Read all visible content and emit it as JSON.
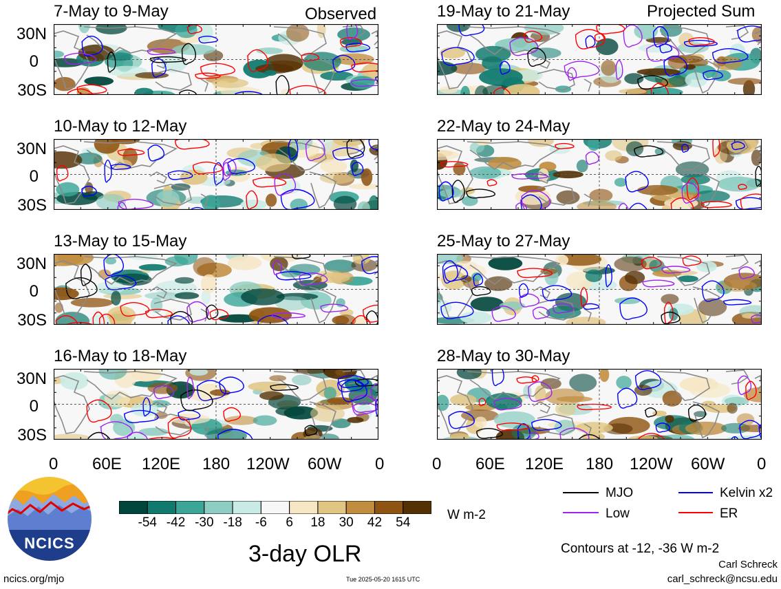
{
  "headers": {
    "observed": "Observed",
    "projected": "Projected Sum"
  },
  "panels": [
    {
      "title": "7-May to 9-May"
    },
    {
      "title": "10-May to 12-May"
    },
    {
      "title": "13-May to 15-May"
    },
    {
      "title": "16-May to 18-May"
    },
    {
      "title": "19-May to 21-May"
    },
    {
      "title": "22-May to 24-May"
    },
    {
      "title": "25-May to 27-May"
    },
    {
      "title": "28-May to 30-May"
    }
  ],
  "lat_labels": [
    "30N",
    "0",
    "30S"
  ],
  "lon_labels": [
    "0",
    "60E",
    "120E",
    "180",
    "120W",
    "60W",
    "0"
  ],
  "colorbar": {
    "colors": [
      "#01463c",
      "#117a6e",
      "#3ba597",
      "#8ecdc2",
      "#c9ebe5",
      "#f7f7f7",
      "#f6e6c3",
      "#e1c683",
      "#c18d3f",
      "#8f5412",
      "#543005"
    ],
    "ticks": [
      "-54",
      "-42",
      "-30",
      "-18",
      "-6",
      "6",
      "18",
      "30",
      "42",
      "54"
    ],
    "units": "W m-2"
  },
  "legend": [
    {
      "label": "MJO",
      "color": "#000000"
    },
    {
      "label": "Kelvin x2",
      "color": "#0000ff"
    },
    {
      "label": "Low",
      "color": "#a020f0"
    },
    {
      "label": "ER",
      "color": "#ff0000"
    }
  ],
  "main_title": "3-day OLR",
  "contour_note": "Contours at -12, -36 W m-2",
  "author": "Carl Schreck",
  "email": "carl_schreck@ncsu.edu",
  "url": "ncics.org/mjo",
  "timestamp": "Tue 2025-05-20 1615 UTC",
  "logo_text": "NCICS"
}
